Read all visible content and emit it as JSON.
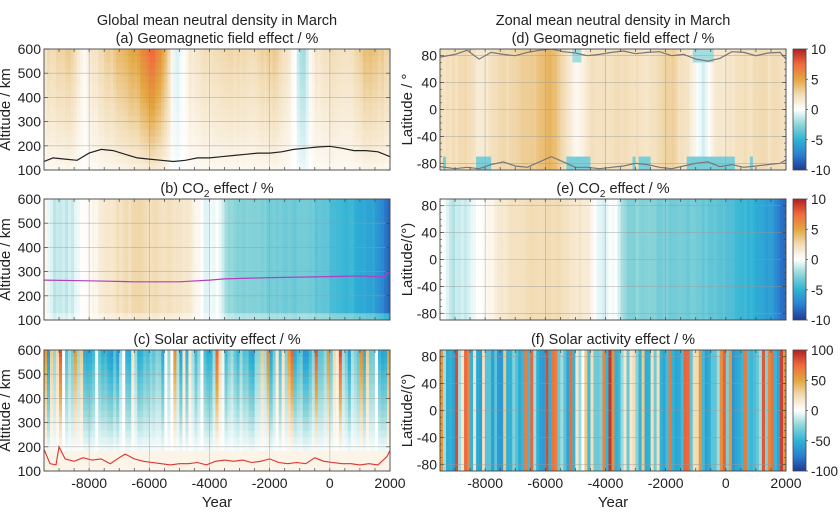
{
  "chart_data": [
    {
      "id": "a",
      "type": "heatmap",
      "group_title": "Global mean neutral density in March",
      "title": "(a)  Geomagnetic field effect / %",
      "xlabel": "",
      "ylabel": "Altitude / km",
      "xlim": [
        -9500,
        2000
      ],
      "ylim": [
        100,
        600
      ],
      "xticks": [
        -8000,
        -6000,
        -4000,
        -2000,
        0,
        2000
      ],
      "yticks": [
        100,
        200,
        300,
        400,
        500,
        600
      ],
      "ytick_labels": [
        "100",
        "200",
        "300",
        "400",
        "500",
        "600"
      ],
      "show_xtick_labels": false,
      "grid": true,
      "clim": [
        -10,
        10
      ],
      "column_profile": [
        {
          "x": -9500,
          "v": 2.0
        },
        {
          "x": -9000,
          "v": 2.5
        },
        {
          "x": -8600,
          "v": 2.8
        },
        {
          "x": -8200,
          "v": 0.3
        },
        {
          "x": -7800,
          "v": 1.8
        },
        {
          "x": -7200,
          "v": 3.0
        },
        {
          "x": -6400,
          "v": 4.5
        },
        {
          "x": -5900,
          "v": 7.0
        },
        {
          "x": -5500,
          "v": 4.0
        },
        {
          "x": -5100,
          "v": -1.0
        },
        {
          "x": -4600,
          "v": 1.5
        },
        {
          "x": -4000,
          "v": 2.0
        },
        {
          "x": -3400,
          "v": 2.5
        },
        {
          "x": -2600,
          "v": 2.0
        },
        {
          "x": -1800,
          "v": 3.0
        },
        {
          "x": -1300,
          "v": 1.0
        },
        {
          "x": -900,
          "v": -2.0
        },
        {
          "x": -500,
          "v": 1.5
        },
        {
          "x": 0,
          "v": 2.0
        },
        {
          "x": 500,
          "v": 1.5
        },
        {
          "x": 1200,
          "v": 3.5
        },
        {
          "x": 2000,
          "v": 2.5
        }
      ],
      "line": {
        "color": "#222222",
        "x": [
          -9500,
          -9200,
          -8800,
          -8400,
          -8000,
          -7600,
          -7200,
          -6800,
          -6400,
          -6000,
          -5600,
          -5200,
          -4800,
          -4400,
          -4000,
          -3600,
          -3200,
          -2800,
          -2400,
          -2000,
          -1600,
          -1200,
          -800,
          -400,
          0,
          400,
          800,
          1200,
          1600,
          2000
        ],
        "y": [
          135,
          150,
          145,
          140,
          170,
          185,
          180,
          165,
          150,
          145,
          140,
          135,
          140,
          150,
          150,
          155,
          160,
          165,
          170,
          170,
          175,
          185,
          190,
          195,
          198,
          190,
          180,
          180,
          175,
          155
        ]
      },
      "colorbar": null
    },
    {
      "id": "b",
      "type": "heatmap",
      "title": "(b)  CO₂ effect / %",
      "xlabel": "",
      "ylabel": "Altitude / km",
      "xlim": [
        -9500,
        2000
      ],
      "ylim": [
        100,
        600
      ],
      "xticks": [
        -8000,
        -6000,
        -4000,
        -2000,
        0,
        2000
      ],
      "yticks": [
        100,
        200,
        300,
        400,
        500,
        600
      ],
      "ytick_labels": [
        "100",
        "200",
        "300",
        "400",
        "500",
        "600"
      ],
      "show_xtick_labels": false,
      "grid": true,
      "clim": [
        -10,
        10
      ],
      "column_profile": [
        {
          "x": -9500,
          "v": 0.5
        },
        {
          "x": -9100,
          "v": -1.5
        },
        {
          "x": -8500,
          "v": -1.0
        },
        {
          "x": -8200,
          "v": 0.2
        },
        {
          "x": -7800,
          "v": 0.8
        },
        {
          "x": -7200,
          "v": 2.0
        },
        {
          "x": -6500,
          "v": 2.5
        },
        {
          "x": -5500,
          "v": 2.2
        },
        {
          "x": -4600,
          "v": 1.5
        },
        {
          "x": -4100,
          "v": -1.0
        },
        {
          "x": -3700,
          "v": 0.2
        },
        {
          "x": -3400,
          "v": -2.5
        },
        {
          "x": -2000,
          "v": -3.0
        },
        {
          "x": -500,
          "v": -3.5
        },
        {
          "x": 500,
          "v": -4.5
        },
        {
          "x": 1500,
          "v": -6.0
        },
        {
          "x": 2000,
          "v": -8.5
        }
      ],
      "line": {
        "color": "#b040c0",
        "x": [
          -9500,
          -8000,
          -6500,
          -5000,
          -4000,
          -3500,
          -2000,
          -500,
          1000,
          1800,
          1900,
          2000
        ],
        "y": [
          265,
          262,
          258,
          258,
          265,
          270,
          275,
          278,
          282,
          278,
          290,
          305
        ]
      },
      "colorbar": null
    },
    {
      "id": "c",
      "type": "heatmap",
      "title": "(c)  Solar activity effect / %",
      "xlabel": "Year",
      "ylabel": "Altitude / km",
      "xlim": [
        -9500,
        2000
      ],
      "ylim": [
        100,
        600
      ],
      "xticks": [
        -8000,
        -6000,
        -4000,
        -2000,
        0,
        2000
      ],
      "xtick_labels": [
        "-8000",
        "-6000",
        "-4000",
        "-2000",
        "0",
        "2000"
      ],
      "yticks": [
        100,
        200,
        300,
        400,
        500,
        600
      ],
      "ytick_labels": [
        "100",
        "200",
        "300",
        "400",
        "500",
        "600"
      ],
      "show_xtick_labels": true,
      "grid": true,
      "clim": [
        -100,
        100
      ],
      "striped": true,
      "line": {
        "color": "#e03030",
        "x": [
          -9500,
          -9300,
          -9100,
          -9000,
          -8800,
          -8500,
          -8200,
          -7900,
          -7600,
          -7300,
          -7000,
          -6800,
          -6500,
          -6200,
          -5900,
          -5600,
          -5300,
          -5000,
          -4700,
          -4400,
          -4100,
          -3800,
          -3500,
          -3200,
          -2900,
          -2600,
          -2300,
          -2000,
          -1700,
          -1400,
          -1100,
          -800,
          -500,
          -200,
          100,
          400,
          700,
          1000,
          1300,
          1600,
          1900,
          2000
        ],
        "y": [
          190,
          130,
          125,
          200,
          150,
          140,
          155,
          145,
          150,
          130,
          155,
          170,
          150,
          140,
          135,
          130,
          125,
          130,
          130,
          135,
          125,
          140,
          145,
          140,
          145,
          135,
          140,
          150,
          135,
          130,
          135,
          130,
          155,
          140,
          135,
          130,
          130,
          125,
          130,
          125,
          160,
          185
        ]
      },
      "colorbar": null
    },
    {
      "id": "d",
      "type": "heatmap",
      "group_title": "Zonal mean neutral density in March",
      "title": "(d)  Geomagnetic field effect / %",
      "xlabel": "",
      "ylabel": "Latitude / °",
      "xlim": [
        -9500,
        2000
      ],
      "ylim": [
        -90,
        90
      ],
      "xticks": [
        -8000,
        -6000,
        -4000,
        -2000,
        0,
        2000
      ],
      "yticks": [
        -80,
        -40,
        0,
        40,
        80
      ],
      "ytick_labels": [
        "-80",
        "-40",
        "0",
        "40",
        "80"
      ],
      "show_xtick_labels": false,
      "grid": true,
      "clim": [
        -10,
        10
      ],
      "column_profile": [
        {
          "x": -9500,
          "v": 2.0
        },
        {
          "x": -8600,
          "v": 2.5
        },
        {
          "x": -8200,
          "v": 1.5
        },
        {
          "x": -7400,
          "v": 2.5
        },
        {
          "x": -6200,
          "v": 3.5
        },
        {
          "x": -5900,
          "v": 4.5
        },
        {
          "x": -5500,
          "v": 3.0
        },
        {
          "x": -5000,
          "v": 0.5
        },
        {
          "x": -4500,
          "v": 2.0
        },
        {
          "x": -3600,
          "v": 2.5
        },
        {
          "x": -2600,
          "v": 2.0
        },
        {
          "x": -1800,
          "v": 3.0
        },
        {
          "x": -1200,
          "v": 1.5
        },
        {
          "x": -800,
          "v": -1.0
        },
        {
          "x": -300,
          "v": 1.5
        },
        {
          "x": 400,
          "v": 2.0
        },
        {
          "x": 1200,
          "v": 2.5
        },
        {
          "x": 2000,
          "v": 2.0
        }
      ],
      "line": {
        "color": "#777777",
        "x": [
          -9500,
          -9000,
          -8600,
          -8200,
          -7800,
          -7400,
          -7000,
          -6600,
          -6200,
          -5800,
          -5400,
          -5000,
          -4600,
          -4200,
          -3800,
          -3400,
          -3000,
          -2600,
          -2200,
          -1800,
          -1400,
          -1000,
          -600,
          -200,
          200,
          600,
          1000,
          1400,
          1800,
          2000
        ],
        "y": [
          78,
          82,
          88,
          75,
          85,
          82,
          80,
          85,
          88,
          90,
          86,
          84,
          80,
          82,
          85,
          87,
          83,
          85,
          86,
          80,
          82,
          75,
          72,
          76,
          86,
          85,
          80,
          84,
          85,
          75
        ]
      },
      "line2": {
        "color": "#777777",
        "x": [
          -9500,
          -9000,
          -8600,
          -8200,
          -7800,
          -7400,
          -7000,
          -6600,
          -6200,
          -5800,
          -5400,
          -5000,
          -4600,
          -4200,
          -3800,
          -3400,
          -3000,
          -2600,
          -2200,
          -1800,
          -1400,
          -1000,
          -600,
          -200,
          200,
          600,
          1000,
          1400,
          1800,
          2000
        ],
        "y": [
          -85,
          -88,
          -86,
          -88,
          -82,
          -78,
          -84,
          -86,
          -78,
          -70,
          -78,
          -86,
          -86,
          -88,
          -86,
          -84,
          -80,
          -82,
          -86,
          -88,
          -84,
          -80,
          -78,
          -85,
          -82,
          -86,
          -84,
          -82,
          -80,
          -75
        ]
      },
      "colorbar": {
        "ticks": [
          10,
          5,
          0,
          -5,
          -10
        ],
        "tick_labels": [
          "10",
          "5",
          "0",
          "-5",
          "-10"
        ]
      }
    },
    {
      "id": "e",
      "type": "heatmap",
      "title": "(e)  CO₂ effect / %",
      "xlabel": "",
      "ylabel": "Latitude/(°)",
      "xlim": [
        -9500,
        2000
      ],
      "ylim": [
        -90,
        90
      ],
      "xticks": [
        -8000,
        -6000,
        -4000,
        -2000,
        0,
        2000
      ],
      "yticks": [
        -80,
        -40,
        0,
        40,
        80
      ],
      "ytick_labels": [
        "-80",
        "-40",
        "0",
        "40",
        "80"
      ],
      "show_xtick_labels": false,
      "grid": true,
      "clim": [
        -10,
        10
      ],
      "column_profile": [
        {
          "x": -9500,
          "v": 0.5
        },
        {
          "x": -9100,
          "v": -1.5
        },
        {
          "x": -8500,
          "v": -1.0
        },
        {
          "x": -8200,
          "v": 0.2
        },
        {
          "x": -7800,
          "v": 0.8
        },
        {
          "x": -7200,
          "v": 2.0
        },
        {
          "x": -6500,
          "v": 2.5
        },
        {
          "x": -5500,
          "v": 2.2
        },
        {
          "x": -4600,
          "v": 1.5
        },
        {
          "x": -4100,
          "v": -1.0
        },
        {
          "x": -3700,
          "v": 0.2
        },
        {
          "x": -3400,
          "v": -2.5
        },
        {
          "x": -2000,
          "v": -3.0
        },
        {
          "x": -500,
          "v": -3.5
        },
        {
          "x": 500,
          "v": -4.5
        },
        {
          "x": 1500,
          "v": -6.0
        },
        {
          "x": 2000,
          "v": -8.5
        }
      ],
      "line": null,
      "colorbar": {
        "ticks": [
          10,
          5,
          0,
          -5,
          -10
        ],
        "tick_labels": [
          "10",
          "5",
          "0",
          "-5",
          "-10"
        ]
      }
    },
    {
      "id": "f",
      "type": "heatmap",
      "title": "(f)  Solar activity effect / %",
      "xlabel": "Year",
      "ylabel": "Latitude/(°)",
      "xlim": [
        -9500,
        2000
      ],
      "ylim": [
        -90,
        90
      ],
      "xticks": [
        -8000,
        -6000,
        -4000,
        -2000,
        0,
        2000
      ],
      "xtick_labels": [
        "-8000",
        "-6000",
        "-4000",
        "-2000",
        "0",
        "2000"
      ],
      "yticks": [
        -80,
        -40,
        0,
        40,
        80
      ],
      "ytick_labels": [
        "-80",
        "-40",
        "0",
        "40",
        "80"
      ],
      "show_xtick_labels": true,
      "grid": true,
      "clim": [
        -100,
        100
      ],
      "striped": true,
      "line": null,
      "colorbar": {
        "ticks": [
          100,
          50,
          0,
          -50,
          -100
        ],
        "tick_labels": [
          "100",
          "50",
          "0",
          "-50",
          "-100"
        ]
      }
    }
  ],
  "colormap": [
    "#1f3a93",
    "#2b7fd0",
    "#2fb3d6",
    "#8dd5d8",
    "#ffffff",
    "#f2dcb5",
    "#e3a640",
    "#f06a3c",
    "#b01e23"
  ]
}
